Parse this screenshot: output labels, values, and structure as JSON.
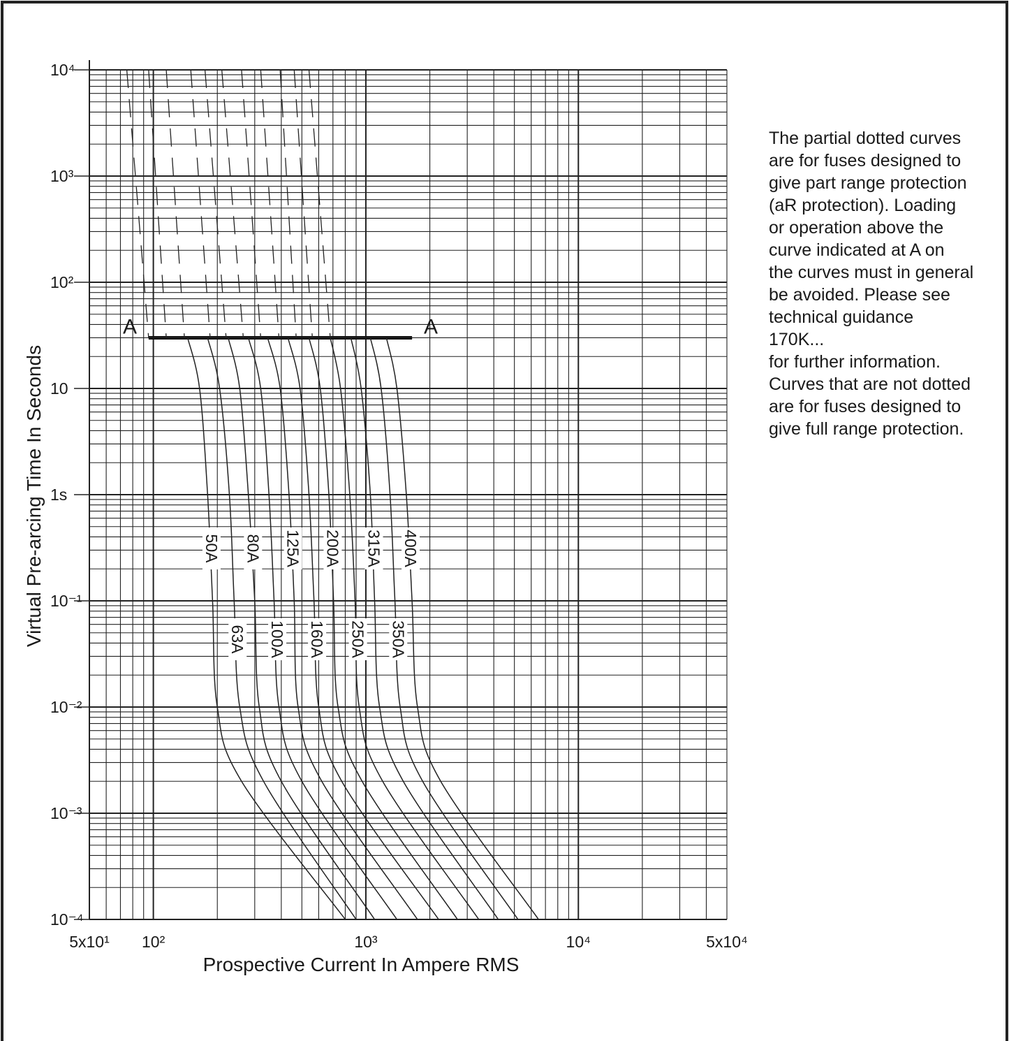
{
  "chart_data": {
    "type": "line",
    "title": "",
    "xlabel": "Prospective Current In Ampere RMS",
    "ylabel": "Virtual Pre-arcing Time In Seconds",
    "x_scale": "log",
    "y_scale": "log",
    "xlim": [
      50,
      50000
    ],
    "ylim": [
      0.0001,
      10000
    ],
    "grid": true,
    "x_ticks": [
      {
        "value": 50,
        "label": "5x10¹"
      },
      {
        "value": 100,
        "label": "10²"
      },
      {
        "value": 1000,
        "label": "10³"
      },
      {
        "value": 10000,
        "label": "10⁴"
      },
      {
        "value": 50000,
        "label": "5x10⁴"
      }
    ],
    "y_ticks": [
      {
        "value": 10000,
        "label": "10⁴"
      },
      {
        "value": 1000,
        "label": "10³"
      },
      {
        "value": 100,
        "label": "10²"
      },
      {
        "value": 10,
        "label": "10"
      },
      {
        "value": 1,
        "label": "1s"
      },
      {
        "value": 0.1,
        "label": "10⁻¹"
      },
      {
        "value": 0.01,
        "label": "10⁻²"
      },
      {
        "value": 0.001,
        "label": "10⁻³"
      },
      {
        "value": 0.0001,
        "label": "10⁻⁴"
      }
    ],
    "a_line": {
      "label": "A",
      "y": 30,
      "x": [
        95,
        1650
      ]
    },
    "series": [
      {
        "name": "50A",
        "dotted_top": [
          [
            75,
            10000
          ],
          [
            95,
            30
          ]
        ],
        "points": [
          [
            145,
            30
          ],
          [
            165,
            10
          ],
          [
            180,
            1
          ],
          [
            190,
            0.1
          ],
          [
            200,
            0.01
          ],
          [
            260,
            0.002
          ],
          [
            800,
            0.0001
          ]
        ]
      },
      {
        "name": "63A",
        "dotted_top": [
          [
            95,
            10000
          ],
          [
            115,
            30
          ]
        ],
        "points": [
          [
            180,
            30
          ],
          [
            205,
            10
          ],
          [
            228,
            1
          ],
          [
            240,
            0.1
          ],
          [
            255,
            0.01
          ],
          [
            330,
            0.002
          ],
          [
            900,
            0.0001
          ]
        ]
      },
      {
        "name": "80A",
        "dotted_top": [
          [
            115,
            10000
          ],
          [
            140,
            30
          ]
        ],
        "points": [
          [
            225,
            30
          ],
          [
            255,
            10
          ],
          [
            280,
            1
          ],
          [
            300,
            0.1
          ],
          [
            315,
            0.01
          ],
          [
            400,
            0.002
          ],
          [
            1100,
            0.0001
          ]
        ]
      },
      {
        "name": "100A",
        "dotted_top": [
          [
            150,
            10000
          ],
          [
            185,
            30
          ]
        ],
        "points": [
          [
            280,
            30
          ],
          [
            320,
            10
          ],
          [
            350,
            1
          ],
          [
            370,
            0.1
          ],
          [
            390,
            0.01
          ],
          [
            500,
            0.002
          ],
          [
            1400,
            0.0001
          ]
        ]
      },
      {
        "name": "125A",
        "dotted_top": [
          [
            175,
            10000
          ],
          [
            220,
            30
          ]
        ],
        "points": [
          [
            345,
            30
          ],
          [
            395,
            10
          ],
          [
            435,
            1
          ],
          [
            460,
            0.1
          ],
          [
            480,
            0.01
          ],
          [
            620,
            0.002
          ],
          [
            1750,
            0.0001
          ]
        ]
      },
      {
        "name": "160A",
        "dotted_top": [
          [
            210,
            10000
          ],
          [
            265,
            30
          ]
        ],
        "points": [
          [
            430,
            30
          ],
          [
            490,
            10
          ],
          [
            540,
            1
          ],
          [
            570,
            0.1
          ],
          [
            600,
            0.01
          ],
          [
            770,
            0.002
          ],
          [
            2200,
            0.0001
          ]
        ]
      },
      {
        "name": "200A",
        "dotted_top": [
          [
            260,
            10000
          ],
          [
            320,
            30
          ]
        ],
        "points": [
          [
            540,
            30
          ],
          [
            610,
            10
          ],
          [
            670,
            1
          ],
          [
            705,
            0.1
          ],
          [
            740,
            0.01
          ],
          [
            960,
            0.002
          ],
          [
            2700,
            0.0001
          ]
        ]
      },
      {
        "name": "250A",
        "dotted_top": [
          [
            320,
            10000
          ],
          [
            390,
            30
          ]
        ],
        "points": [
          [
            680,
            30
          ],
          [
            760,
            10
          ],
          [
            840,
            1
          ],
          [
            890,
            0.1
          ],
          [
            930,
            0.01
          ],
          [
            1200,
            0.002
          ],
          [
            3400,
            0.0001
          ]
        ]
      },
      {
        "name": "315A",
        "dotted_top": [
          [
            395,
            10000
          ],
          [
            470,
            30
          ]
        ],
        "points": [
          [
            850,
            30
          ],
          [
            950,
            10
          ],
          [
            1050,
            1
          ],
          [
            1100,
            0.1
          ],
          [
            1160,
            0.01
          ],
          [
            1500,
            0.002
          ],
          [
            4200,
            0.0001
          ]
        ]
      },
      {
        "name": "350A",
        "dotted_top": [
          [
            460,
            10000
          ],
          [
            560,
            30
          ]
        ],
        "points": [
          [
            1050,
            30
          ],
          [
            1180,
            10
          ],
          [
            1300,
            1
          ],
          [
            1370,
            0.1
          ],
          [
            1450,
            0.01
          ],
          [
            1850,
            0.002
          ],
          [
            5200,
            0.0001
          ]
        ]
      },
      {
        "name": "400A",
        "dotted_top": [
          [
            540,
            10000
          ],
          [
            680,
            30
          ]
        ],
        "points": [
          [
            1250,
            30
          ],
          [
            1400,
            10
          ],
          [
            1550,
            1
          ],
          [
            1650,
            0.1
          ],
          [
            1750,
            0.01
          ],
          [
            2250,
            0.002
          ],
          [
            6500,
            0.0001
          ]
        ]
      }
    ]
  },
  "note": {
    "lines": [
      "The partial dotted curves",
      "are for fuses designed to",
      "give part range protection",
      "(aR protection). Loading",
      "or operation above the",
      "curve indicated at A on",
      "the curves must in general",
      "be avoided. Please see",
      "technical guidance",
      "170K...",
      "for further information.",
      "Curves that are not dotted",
      "are for fuses designed to",
      "give full range protection."
    ]
  }
}
